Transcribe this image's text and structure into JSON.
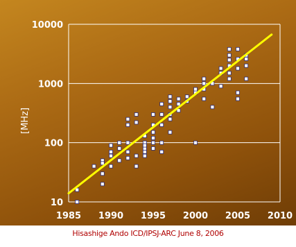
{
  "footer": "Hisashige Ando ICD/IPSJ-ARC June 8, 2006",
  "chart_data": {
    "type": "scatter",
    "ylabel": "[MHz]",
    "xlabel": "",
    "title": "",
    "x_ticks": [
      1985,
      1990,
      1995,
      2000,
      2005,
      2010
    ],
    "y_ticks": [
      10,
      100,
      1000,
      10000
    ],
    "xlim": [
      1985,
      2010
    ],
    "ylim": [
      10,
      10000
    ],
    "y_scale": "log",
    "grid": "horizontal",
    "colors": {
      "background": "#a8661a",
      "grid": "#ffffff",
      "points": "#ffffff",
      "trend": "#ffff00"
    },
    "points": [
      [
        1986,
        16
      ],
      [
        1986,
        10
      ],
      [
        1988,
        40
      ],
      [
        1989,
        30
      ],
      [
        1989,
        20
      ],
      [
        1989,
        50
      ],
      [
        1989,
        45
      ],
      [
        1990,
        60
      ],
      [
        1990,
        90
      ],
      [
        1990,
        70
      ],
      [
        1990,
        40
      ],
      [
        1991,
        50
      ],
      [
        1991,
        80
      ],
      [
        1991,
        100
      ],
      [
        1992,
        100
      ],
      [
        1992,
        70
      ],
      [
        1992,
        200
      ],
      [
        1992,
        250
      ],
      [
        1992,
        55
      ],
      [
        1993,
        60
      ],
      [
        1993,
        300
      ],
      [
        1993,
        220
      ],
      [
        1993,
        40
      ],
      [
        1994,
        100
      ],
      [
        1994,
        130
      ],
      [
        1994,
        80
      ],
      [
        1994,
        90
      ],
      [
        1994,
        70
      ],
      [
        1994,
        60
      ],
      [
        1995,
        100
      ],
      [
        1995,
        150
      ],
      [
        1995,
        200
      ],
      [
        1995,
        120
      ],
      [
        1995,
        80
      ],
      [
        1995,
        300
      ],
      [
        1996,
        200
      ],
      [
        1996,
        300
      ],
      [
        1996,
        450
      ],
      [
        1996,
        100
      ],
      [
        1996,
        70
      ],
      [
        1997,
        300
      ],
      [
        1997,
        400
      ],
      [
        1997,
        500
      ],
      [
        1997,
        600
      ],
      [
        1997,
        250
      ],
      [
        1997,
        150
      ],
      [
        1998,
        450
      ],
      [
        1998,
        350
      ],
      [
        1998,
        550
      ],
      [
        1999,
        500
      ],
      [
        1999,
        600
      ],
      [
        2000,
        700
      ],
      [
        2000,
        800
      ],
      [
        2000,
        100
      ],
      [
        2001,
        1000
      ],
      [
        2001,
        1200
      ],
      [
        2001,
        800
      ],
      [
        2001,
        550
      ],
      [
        2002,
        1000
      ],
      [
        2002,
        400
      ],
      [
        2003,
        1500
      ],
      [
        2003,
        900
      ],
      [
        2003,
        1800
      ],
      [
        2004,
        2000
      ],
      [
        2004,
        2500
      ],
      [
        2004,
        3000
      ],
      [
        2004,
        3800
      ],
      [
        2004,
        1500
      ],
      [
        2004,
        1200
      ],
      [
        2005,
        3800
      ],
      [
        2005,
        2600
      ],
      [
        2005,
        700
      ],
      [
        2005,
        550
      ],
      [
        2005,
        1800
      ],
      [
        2006,
        2600
      ],
      [
        2006,
        3000
      ],
      [
        2006,
        1200
      ],
      [
        2006,
        2000
      ]
    ],
    "trend": [
      [
        1985,
        14
      ],
      [
        2009,
        6700
      ]
    ]
  }
}
